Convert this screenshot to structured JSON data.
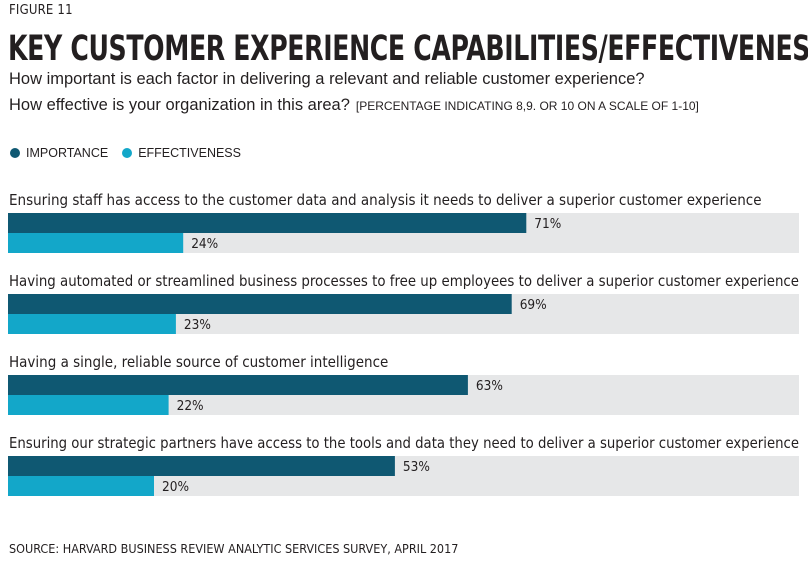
{
  "figure_label": "FIGURE 11",
  "title": "KEY CUSTOMER EXPERIENCE CAPABILITIES/EFFECTIVENESS",
  "question_1": "How important is each factor in delivering a relevant and reliable customer experience?",
  "question_2": "How effective is your organization in this area?",
  "note": "[PERCENTAGE INDICATING 8,9. OR 10 ON A SCALE OF 1-10]",
  "source": "SOURCE: HARVARD BUSINESS REVIEW ANALYTIC SERVICES SURVEY, APRIL 2017",
  "colors": {
    "importance": "#0f5872",
    "effectiveness": "#13a7c9",
    "track": "#e6e7e8",
    "text": "#231f20"
  },
  "chart_data": {
    "type": "bar",
    "orientation": "horizontal",
    "xlim": [
      0,
      100
    ],
    "value_suffix": "%",
    "legend_position": "top-left",
    "categories": [
      "Ensuring staff has access to the customer data and analysis it needs to deliver a superior customer experience",
      "Having automated or streamlined business processes to free up employees to deliver a superior customer experience",
      "Having a single, reliable source of customer intelligence",
      "Ensuring our strategic partners have access to the tools and data they need to deliver a superior customer experience"
    ],
    "series": [
      {
        "name": "IMPORTANCE",
        "values": [
          71,
          69,
          63,
          53
        ]
      },
      {
        "name": "EFFECTIVENESS",
        "values": [
          24,
          23,
          22,
          20
        ]
      }
    ]
  }
}
